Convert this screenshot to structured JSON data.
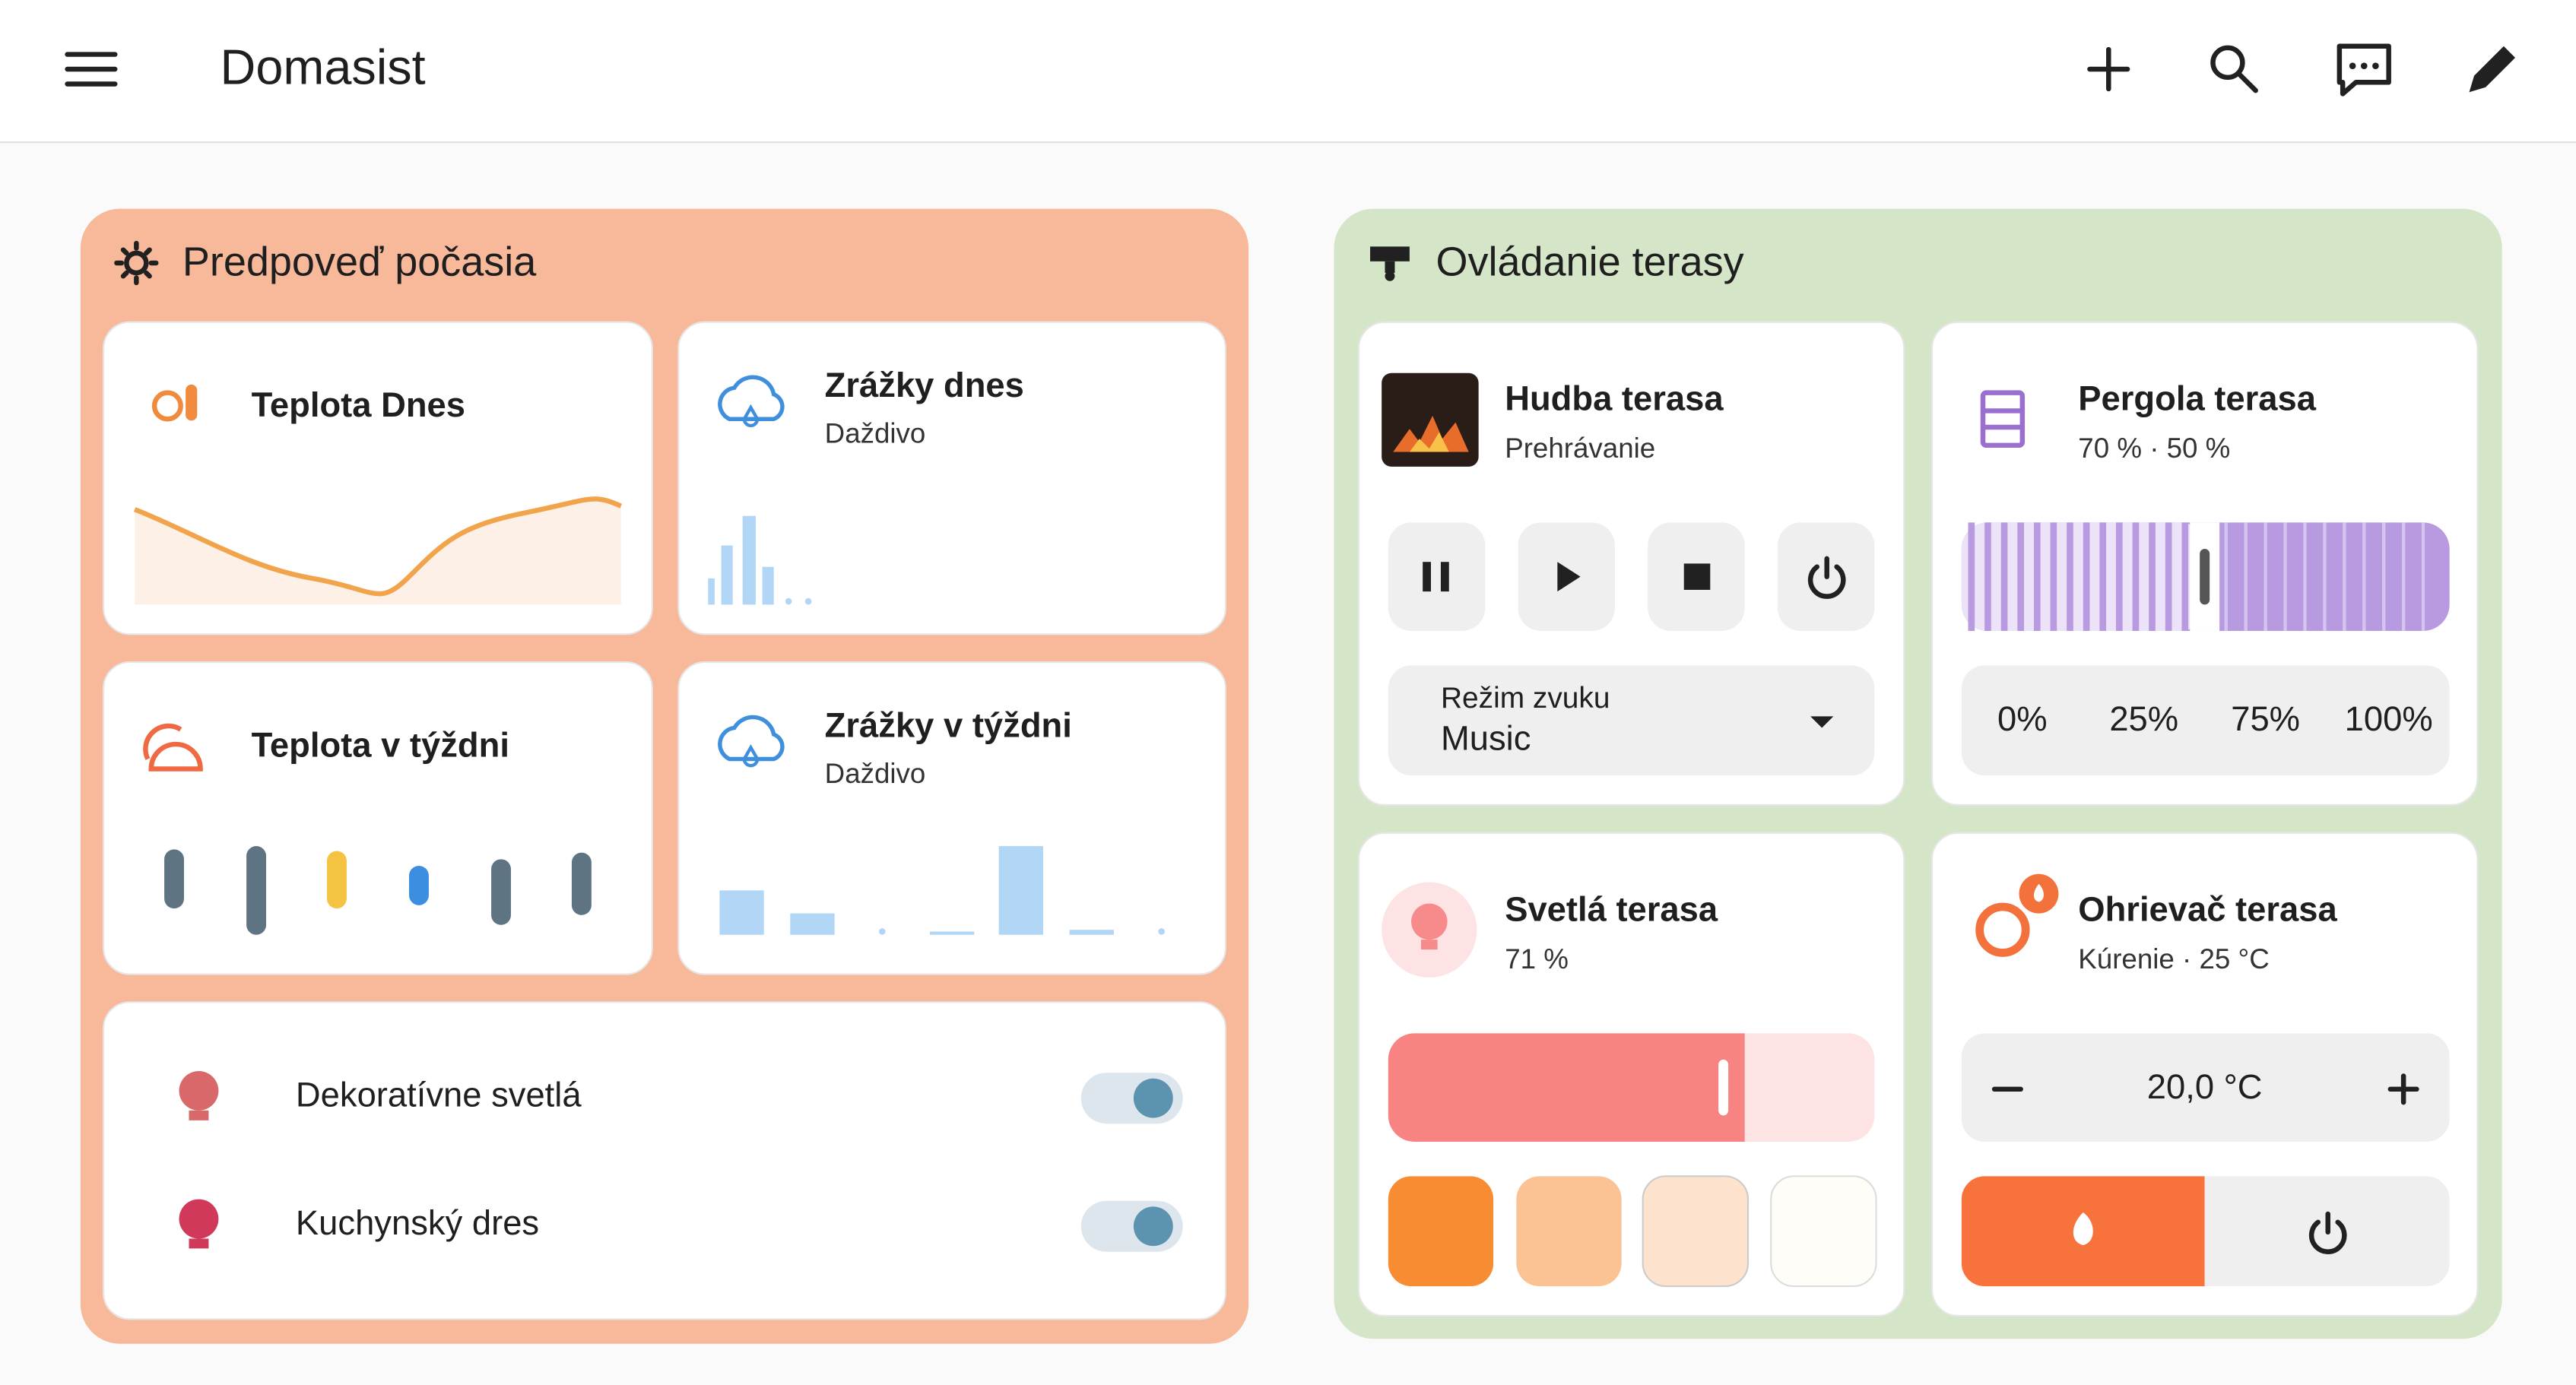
{
  "header": {
    "title": "Domasist"
  },
  "weather": {
    "title": "Predpoveď počasia",
    "cards": [
      {
        "name": "Teplota Dnes"
      },
      {
        "name": "Zrážky dnes",
        "state": "Daždivo"
      },
      {
        "name": "Teplota v týždni"
      },
      {
        "name": "Zrážky v týždni",
        "state": "Daždivo"
      }
    ],
    "lights": [
      {
        "name": "Dekoratívne svetlá"
      },
      {
        "name": "Kuchynský dres"
      }
    ]
  },
  "terrace": {
    "title": "Ovládanie terasy",
    "media": {
      "name": "Hudba terasa",
      "state": "Prehrávanie",
      "select_label": "Režim zvuku",
      "select_value": "Music"
    },
    "pergola": {
      "name": "Pergola terasa",
      "state": "70 % · 50 %",
      "presets": [
        "0%",
        "25%",
        "75%",
        "100%"
      ]
    },
    "light": {
      "name": "Svetlá terasa",
      "state": "71 %"
    },
    "heater": {
      "name": "Ohrievač terasa",
      "state": "Kúrenie · 25 °C",
      "target": "20,0 °C"
    }
  }
}
